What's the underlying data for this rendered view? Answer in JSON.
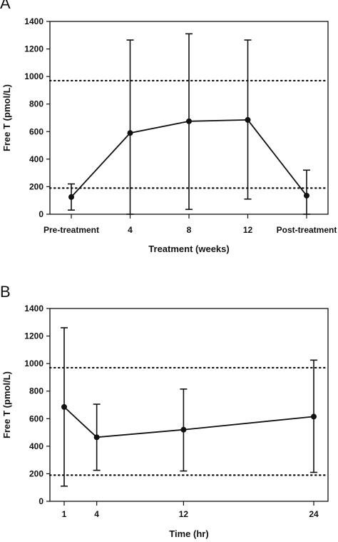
{
  "chart_data": [
    {
      "type": "line",
      "panel_label": "A",
      "categories": [
        "Pre-treatment",
        "4",
        "8",
        "12",
        "Post-treatment"
      ],
      "x_positions": [
        0,
        1,
        2,
        3,
        4
      ],
      "series": [
        {
          "values": [
            125,
            590,
            675,
            685,
            135
          ],
          "error_high": [
            220,
            1265,
            1310,
            1265,
            320
          ],
          "error_low": [
            30,
            0,
            35,
            110,
            0
          ]
        }
      ],
      "reference_lines": [
        190,
        970
      ],
      "xlabel": "Treatment (weeks)",
      "ylabel": "Free T (pmol/L)",
      "ylim": [
        0,
        1400
      ],
      "yticks": [
        0,
        200,
        400,
        600,
        800,
        1000,
        1200,
        1400
      ],
      "grid": false
    },
    {
      "type": "line",
      "panel_label": "B",
      "categories": [
        "1",
        "4",
        "12",
        "24"
      ],
      "x_positions": [
        1,
        4,
        12,
        24
      ],
      "series": [
        {
          "values": [
            685,
            465,
            520,
            615
          ],
          "error_high": [
            1260,
            705,
            815,
            1025
          ],
          "error_low": [
            110,
            225,
            220,
            210
          ]
        }
      ],
      "reference_lines": [
        190,
        970
      ],
      "xlabel": "Time (hr)",
      "ylabel": "Free T (pmol/L)",
      "ylim": [
        0,
        1400
      ],
      "yticks": [
        0,
        200,
        400,
        600,
        800,
        1000,
        1200,
        1400
      ],
      "grid": false
    }
  ]
}
